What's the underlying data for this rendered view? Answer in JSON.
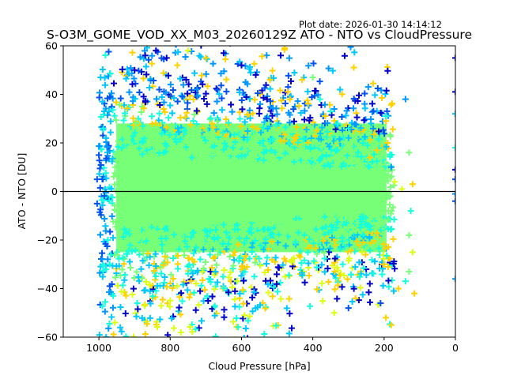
{
  "chart_data": {
    "type": "scatter",
    "title": "S-O3M_GOME_VOD_XX_M03_20260129Z ATO - NTO vs CloudPressure",
    "subtitle": "Plot date: 2026-01-30 14:14:12",
    "xlabel": "Cloud Pressure [hPa]",
    "ylabel": "ATO - NTO [DU]",
    "xlim": [
      1100,
      0
    ],
    "ylim": [
      -60,
      60
    ],
    "x_inverted": true,
    "xticks": [
      1000,
      800,
      600,
      400,
      200,
      0
    ],
    "xtick_labels": [
      "1000",
      "800",
      "600",
      "400",
      "200",
      "0"
    ],
    "yticks": [
      -60,
      -40,
      -20,
      0,
      20,
      40,
      60
    ],
    "ytick_labels": [
      "−60",
      "−40",
      "−20",
      "0",
      "20",
      "40",
      "60"
    ],
    "grid": false,
    "legend": "none",
    "marker": "+",
    "reference_line": {
      "y": 0,
      "color": "#000000"
    },
    "colormap": [
      "#0000c8",
      "#0050f0",
      "#0096ff",
      "#00c8ff",
      "#14ffdc",
      "#78ff78",
      "#dcff14",
      "#ffd200",
      "#ffb400"
    ],
    "density_regions": [
      {
        "name": "dense core",
        "x_range": [
          960,
          180
        ],
        "y_range": [
          -25,
          28
        ],
        "dominant_color": "#78ff78"
      },
      {
        "name": "upper fringe",
        "x_range": [
          1000,
          250
        ],
        "y_range": [
          28,
          60
        ],
        "dominant_color": "#0000c8"
      },
      {
        "name": "lower fringe",
        "x_range": [
          1000,
          150
        ],
        "y_range": [
          -60,
          -25
        ],
        "dominant_color": "#dcff14"
      }
    ],
    "sample_points": [
      {
        "x": 1005,
        "y": 5,
        "c": 1
      },
      {
        "x": 1005,
        "y": -5,
        "c": 1
      },
      {
        "x": 1000,
        "y": 15,
        "c": 1
      },
      {
        "x": 995,
        "y": 47,
        "c": 3
      },
      {
        "x": 990,
        "y": 37,
        "c": 3
      },
      {
        "x": 985,
        "y": 33,
        "c": 3
      },
      {
        "x": 980,
        "y": 22,
        "c": 3
      },
      {
        "x": 975,
        "y": -20,
        "c": 4
      },
      {
        "x": 970,
        "y": -30,
        "c": 4
      },
      {
        "x": 960,
        "y": -43,
        "c": 4
      },
      {
        "x": 955,
        "y": -54,
        "c": 6
      },
      {
        "x": 940,
        "y": -56,
        "c": 3
      },
      {
        "x": 900,
        "y": 50,
        "c": 0
      },
      {
        "x": 870,
        "y": 56,
        "c": 0
      },
      {
        "x": 840,
        "y": 58,
        "c": 0
      },
      {
        "x": 810,
        "y": 55,
        "c": 0
      },
      {
        "x": 780,
        "y": 52,
        "c": 7
      },
      {
        "x": 750,
        "y": 58,
        "c": 6
      },
      {
        "x": 700,
        "y": 55,
        "c": 7
      },
      {
        "x": 650,
        "y": 57,
        "c": 0
      },
      {
        "x": 600,
        "y": 52,
        "c": 0
      },
      {
        "x": 560,
        "y": 48,
        "c": 0
      },
      {
        "x": 520,
        "y": 46,
        "c": 7
      },
      {
        "x": 490,
        "y": 56,
        "c": 0
      },
      {
        "x": 470,
        "y": 41,
        "c": 7
      },
      {
        "x": 430,
        "y": 46,
        "c": 7
      },
      {
        "x": 400,
        "y": 47,
        "c": 5
      },
      {
        "x": 380,
        "y": 38,
        "c": 4
      },
      {
        "x": 350,
        "y": 33,
        "c": 4
      },
      {
        "x": 330,
        "y": 28,
        "c": 4
      },
      {
        "x": 300,
        "y": 26,
        "c": 4
      },
      {
        "x": 260,
        "y": 20,
        "c": 4
      },
      {
        "x": 240,
        "y": 14,
        "c": 7
      },
      {
        "x": 220,
        "y": 17,
        "c": 7
      },
      {
        "x": 195,
        "y": 31,
        "c": 4
      },
      {
        "x": 190,
        "y": 20,
        "c": 7
      },
      {
        "x": 180,
        "y": 10,
        "c": 2
      },
      {
        "x": 170,
        "y": 4,
        "c": 6
      },
      {
        "x": 150,
        "y": 1,
        "c": 6
      },
      {
        "x": 140,
        "y": 38,
        "c": 2
      },
      {
        "x": 130,
        "y": 16,
        "c": 5
      },
      {
        "x": 120,
        "y": 3,
        "c": 7
      },
      {
        "x": 125,
        "y": -8,
        "c": 4
      },
      {
        "x": 130,
        "y": -18,
        "c": 5
      },
      {
        "x": 120,
        "y": -25,
        "c": 6
      },
      {
        "x": 130,
        "y": -33,
        "c": 5
      },
      {
        "x": 140,
        "y": -37,
        "c": 4
      },
      {
        "x": 115,
        "y": -42,
        "c": 7
      },
      {
        "x": 160,
        "y": -40,
        "c": 7
      },
      {
        "x": 200,
        "y": -30,
        "c": 7
      },
      {
        "x": 210,
        "y": -46,
        "c": 1
      },
      {
        "x": 240,
        "y": -38,
        "c": 0
      },
      {
        "x": 195,
        "y": -52,
        "c": 7
      },
      {
        "x": 180,
        "y": -55,
        "c": 7
      },
      {
        "x": 280,
        "y": -44,
        "c": 7
      },
      {
        "x": 300,
        "y": -48,
        "c": 1
      },
      {
        "x": 340,
        "y": -50,
        "c": 6
      },
      {
        "x": 0,
        "y": 55,
        "c": 0
      },
      {
        "x": 0,
        "y": 41,
        "c": 0
      },
      {
        "x": 0,
        "y": 32,
        "c": 3
      },
      {
        "x": 0,
        "y": 18,
        "c": 4
      },
      {
        "x": 0,
        "y": 9,
        "c": 0
      },
      {
        "x": 0,
        "y": 5,
        "c": 1
      },
      {
        "x": 0,
        "y": -1,
        "c": 2
      },
      {
        "x": 0,
        "y": -4,
        "c": 1
      },
      {
        "x": 0,
        "y": -36,
        "c": 2
      }
    ]
  }
}
